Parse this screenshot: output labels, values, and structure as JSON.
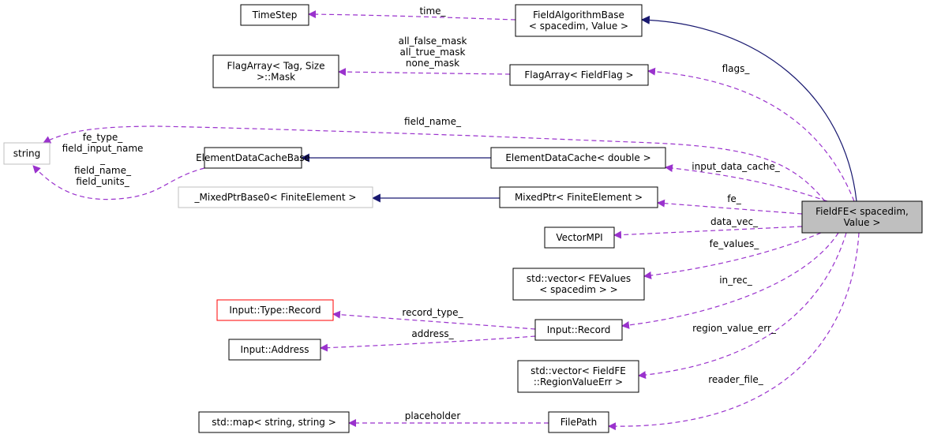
{
  "colors": {
    "inheritance": "#191970",
    "usage": "#9a32cd",
    "focus_fill": "#bfbfbf",
    "undocumented_border": "#bfbfbf",
    "missing_border": "#ff0000"
  },
  "nodes": [
    {
      "id": "timestep",
      "lines": [
        "TimeStep"
      ],
      "style": "normal"
    },
    {
      "id": "fieldalgorithmbase",
      "lines": [
        "FieldAlgorithmBase",
        "< spacedim, Value >"
      ],
      "style": "normal"
    },
    {
      "id": "flagarraymask",
      "lines": [
        "FlagArray< Tag, Size",
        ">::Mask"
      ],
      "style": "normal"
    },
    {
      "id": "flagarrayfieldflag",
      "lines": [
        "FlagArray< FieldFlag >"
      ],
      "style": "normal"
    },
    {
      "id": "string",
      "lines": [
        "string"
      ],
      "style": "undocumented"
    },
    {
      "id": "elementdatacachebase",
      "lines": [
        "ElementDataCacheBase"
      ],
      "style": "normal"
    },
    {
      "id": "elementdatacache",
      "lines": [
        "ElementDataCache< double >"
      ],
      "style": "normal"
    },
    {
      "id": "mixedptrbase0",
      "lines": [
        "_MixedPtrBase0< FiniteElement >"
      ],
      "style": "undocumented"
    },
    {
      "id": "mixedptr",
      "lines": [
        "MixedPtr< FiniteElement >"
      ],
      "style": "normal"
    },
    {
      "id": "fieldfe",
      "lines": [
        "FieldFE< spacedim,",
        "Value >"
      ],
      "style": "focus"
    },
    {
      "id": "vectormpi",
      "lines": [
        "VectorMPI"
      ],
      "style": "normal"
    },
    {
      "id": "fevalues",
      "lines": [
        "std::vector< FEValues",
        "< spacedim > >"
      ],
      "style": "normal"
    },
    {
      "id": "typerecord",
      "lines": [
        "Input::Type::Record"
      ],
      "style": "missing"
    },
    {
      "id": "inputrecord",
      "lines": [
        "Input::Record"
      ],
      "style": "normal"
    },
    {
      "id": "inputaddress",
      "lines": [
        "Input::Address"
      ],
      "style": "normal"
    },
    {
      "id": "regionvalueerr",
      "lines": [
        "std::vector< FieldFE",
        "::RegionValueErr >"
      ],
      "style": "normal"
    },
    {
      "id": "map",
      "lines": [
        "std::map< string, string >"
      ],
      "style": "normal"
    },
    {
      "id": "filepath",
      "lines": [
        "FilePath"
      ],
      "style": "normal"
    }
  ],
  "edges": [
    {
      "id": "e-time",
      "from": "fieldalgorithmbase",
      "to": "timestep",
      "kind": "usage",
      "labels": [
        "time_"
      ]
    },
    {
      "id": "e-masks",
      "from": "flagarrayfieldflag",
      "to": "flagarraymask",
      "kind": "usage",
      "labels": [
        "all_false_mask",
        "all_true_mask",
        "none_mask"
      ]
    },
    {
      "id": "e-base",
      "from": "fieldfe",
      "to": "fieldalgorithmbase",
      "kind": "inheritance",
      "labels": []
    },
    {
      "id": "e-flags",
      "from": "fieldfe",
      "to": "flagarrayfieldflag",
      "kind": "usage",
      "labels": [
        "flags_"
      ]
    },
    {
      "id": "e-fieldname",
      "from": "fieldfe",
      "to": "string",
      "kind": "usage",
      "labels": [
        "field_name_"
      ]
    },
    {
      "id": "e-strings",
      "from": "elementdatacachebase",
      "to": "string",
      "kind": "usage",
      "labels": [
        "fe_type_",
        "field_input_name",
        "_",
        "field_name_",
        "field_units_"
      ]
    },
    {
      "id": "e-edcb",
      "from": "elementdatacache",
      "to": "elementdatacachebase",
      "kind": "inheritance",
      "labels": []
    },
    {
      "id": "e-mpb",
      "from": "mixedptr",
      "to": "mixedptrbase0",
      "kind": "inheritance",
      "labels": []
    },
    {
      "id": "e-idc",
      "from": "fieldfe",
      "to": "elementdatacache",
      "kind": "usage",
      "labels": [
        "input_data_cache_"
      ]
    },
    {
      "id": "e-fe",
      "from": "fieldfe",
      "to": "mixedptr",
      "kind": "usage",
      "labels": [
        "fe_"
      ]
    },
    {
      "id": "e-datavec",
      "from": "fieldfe",
      "to": "vectormpi",
      "kind": "usage",
      "labels": [
        "data_vec_"
      ]
    },
    {
      "id": "e-fevalues",
      "from": "fieldfe",
      "to": "fevalues",
      "kind": "usage",
      "labels": [
        "fe_values_"
      ]
    },
    {
      "id": "e-inrec",
      "from": "fieldfe",
      "to": "inputrecord",
      "kind": "usage",
      "labels": [
        "in_rec_"
      ]
    },
    {
      "id": "e-rectype",
      "from": "inputrecord",
      "to": "typerecord",
      "kind": "usage",
      "labels": [
        "record_type_"
      ]
    },
    {
      "id": "e-address",
      "from": "inputrecord",
      "to": "inputaddress",
      "kind": "usage",
      "labels": [
        "address_"
      ]
    },
    {
      "id": "e-rve",
      "from": "fieldfe",
      "to": "regionvalueerr",
      "kind": "usage",
      "labels": [
        "region_value_err_"
      ]
    },
    {
      "id": "e-reader",
      "from": "fieldfe",
      "to": "filepath",
      "kind": "usage",
      "labels": [
        "reader_file_"
      ]
    },
    {
      "id": "e-placeholder",
      "from": "filepath",
      "to": "map",
      "kind": "usage",
      "labels": [
        "placeholder"
      ]
    }
  ]
}
